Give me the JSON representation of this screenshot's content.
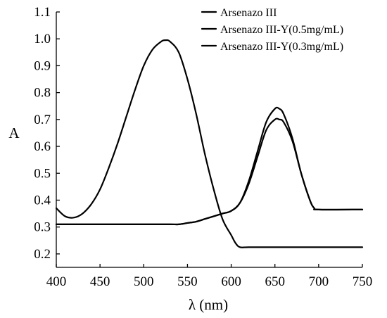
{
  "chart_data": {
    "type": "line",
    "xlabel": "λ (nm)",
    "ylabel": "A",
    "xlim": [
      400,
      750
    ],
    "ylim": [
      0.15,
      1.1
    ],
    "xticks": [
      400,
      450,
      500,
      550,
      600,
      650,
      700,
      750
    ],
    "yticks": [
      0.2,
      0.3,
      0.4,
      0.5,
      0.6,
      0.7,
      0.8,
      0.9,
      1.0,
      1.1
    ],
    "xtick_labels": [
      "400",
      "450",
      "500",
      "550",
      "600",
      "650",
      "700",
      "750"
    ],
    "ytick_labels": [
      "0.2",
      "0.3",
      "0.4",
      "0.5",
      "0.6",
      "0.7",
      "0.8",
      "0.9",
      "1.0",
      "1.1"
    ],
    "grid": false,
    "legend_position": "top-right",
    "line_color": "#000000",
    "series": [
      {
        "name": "Arsenazo III",
        "x": [
          400,
          410,
          420,
          430,
          440,
          450,
          460,
          470,
          480,
          490,
          500,
          510,
          520,
          525,
          530,
          540,
          550,
          560,
          570,
          580,
          590,
          600,
          605,
          610,
          620,
          650,
          700,
          750
        ],
        "y": [
          0.37,
          0.34,
          0.335,
          0.35,
          0.385,
          0.44,
          0.52,
          0.61,
          0.71,
          0.81,
          0.9,
          0.96,
          0.99,
          0.995,
          0.99,
          0.95,
          0.85,
          0.72,
          0.57,
          0.44,
          0.33,
          0.27,
          0.24,
          0.225,
          0.225,
          0.225,
          0.225,
          0.225
        ]
      },
      {
        "name": "Arsenazo III-Y(0.5mg/mL)",
        "x": [
          400,
          450,
          500,
          530,
          540,
          550,
          560,
          570,
          580,
          590,
          600,
          610,
          620,
          630,
          640,
          650,
          655,
          660,
          670,
          680,
          690,
          695,
          700,
          750
        ],
        "y": [
          0.31,
          0.31,
          0.31,
          0.31,
          0.31,
          0.315,
          0.32,
          0.33,
          0.34,
          0.35,
          0.36,
          0.39,
          0.47,
          0.58,
          0.69,
          0.74,
          0.74,
          0.72,
          0.63,
          0.5,
          0.4,
          0.37,
          0.365,
          0.365
        ]
      },
      {
        "name": "Arsenazo III-Y(0.3mg/mL)",
        "x": [
          400,
          450,
          500,
          530,
          540,
          550,
          560,
          570,
          580,
          590,
          600,
          610,
          620,
          630,
          640,
          650,
          655,
          660,
          670,
          680,
          690,
          695,
          700,
          750
        ],
        "y": [
          0.31,
          0.31,
          0.31,
          0.31,
          0.31,
          0.315,
          0.32,
          0.33,
          0.34,
          0.35,
          0.36,
          0.39,
          0.46,
          0.56,
          0.66,
          0.7,
          0.7,
          0.69,
          0.62,
          0.5,
          0.4,
          0.37,
          0.365,
          0.365
        ]
      }
    ]
  }
}
